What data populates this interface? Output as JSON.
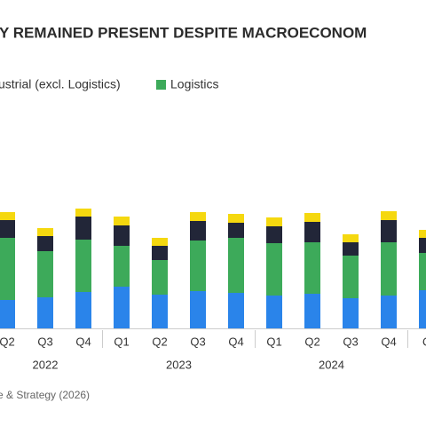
{
  "chart_data": {
    "type": "stacked_bar",
    "title": "Y REMAINED PRESENT DESPITE MACROECONOM",
    "legend_extra": "ustrial (excl. Logistics)",
    "categories": [
      "Q2",
      "Q3",
      "Q4",
      "Q1",
      "Q2",
      "Q3",
      "Q4",
      "Q1",
      "Q2",
      "Q3",
      "Q4",
      "Q"
    ],
    "groups": [
      {
        "label": "2022",
        "span": [
          0,
          2
        ]
      },
      {
        "label": "2023",
        "span": [
          3,
          6
        ]
      },
      {
        "label": "2024",
        "span": [
          7,
          10
        ]
      }
    ],
    "series": [
      {
        "color": "#2a84ea",
        "values": [
          32,
          35,
          41,
          47,
          38,
          42,
          40,
          37,
          39,
          34,
          37,
          43
        ]
      },
      {
        "name": "Logistics",
        "color": "#3daa5a",
        "values": [
          70,
          52,
          59,
          46,
          39,
          57,
          62,
          59,
          58,
          48,
          60,
          42
        ]
      },
      {
        "color": "#222638",
        "values": [
          20,
          17,
          26,
          23,
          16,
          22,
          17,
          19,
          23,
          15,
          25,
          17
        ]
      },
      {
        "color": "#f5d80f",
        "values": [
          9,
          9,
          9,
          10,
          9,
          10,
          10,
          10,
          10,
          9,
          10,
          9
        ]
      }
    ],
    "ylim": [
      0,
      140
    ],
    "source": "e & Strategy (2026)"
  }
}
